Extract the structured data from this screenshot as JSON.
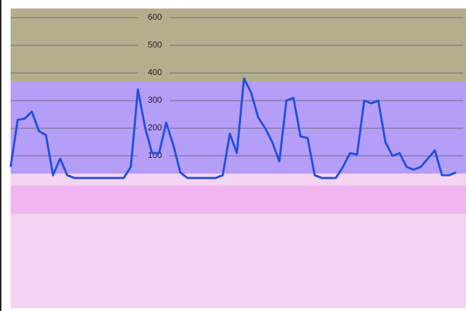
{
  "chart_data": {
    "type": "line",
    "categories": [
      null,
      null,
      null,
      null,
      null,
      null,
      null,
      null,
      null,
      null,
      null,
      null,
      null,
      null,
      null,
      null,
      null,
      null,
      null,
      null,
      null,
      null,
      null,
      null,
      null,
      null,
      null,
      null,
      null,
      null,
      null,
      null,
      null,
      null,
      null,
      null,
      null,
      null,
      null,
      null,
      null,
      null,
      null,
      null,
      null,
      null,
      null,
      null,
      null,
      null,
      null,
      null,
      null,
      null,
      null,
      null,
      null,
      null,
      null,
      null,
      null,
      null,
      null,
      null
    ],
    "values": [
      60,
      230,
      235,
      260,
      190,
      175,
      30,
      90,
      30,
      20,
      20,
      20,
      20,
      20,
      20,
      20,
      20,
      60,
      340,
      205,
      110,
      110,
      220,
      140,
      40,
      20,
      20,
      20,
      20,
      20,
      30,
      180,
      110,
      380,
      330,
      240,
      200,
      150,
      80,
      300,
      310,
      170,
      165,
      30,
      20,
      20,
      20,
      60,
      110,
      105,
      300,
      290,
      300,
      150,
      100,
      110,
      60,
      50,
      60,
      90,
      120,
      30,
      30,
      40
    ],
    "color": "#2050e0",
    "ylim": [
      0,
      650
    ],
    "yticks": [
      100,
      200,
      300,
      400,
      500,
      600
    ],
    "grid": true
  }
}
